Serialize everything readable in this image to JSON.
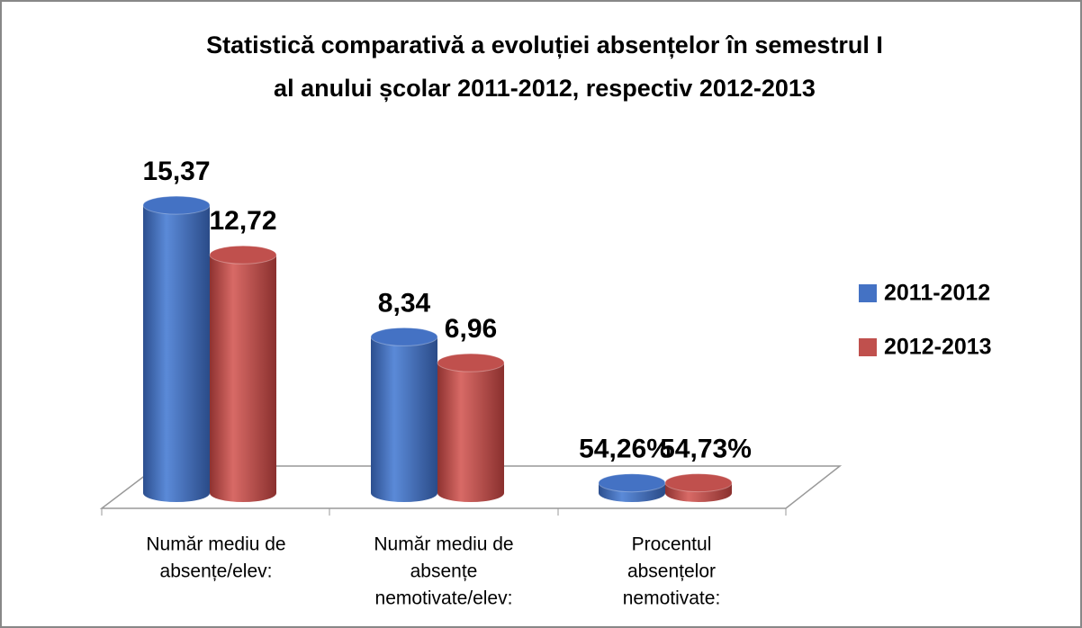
{
  "chart_data": {
    "type": "bar3d",
    "title": [
      "Statistică comparativă a evoluției absențelor în semestrul I",
      "al anului școlar 2011-2012, respectiv 2012-2013"
    ],
    "categories": [
      [
        "Număr mediu de",
        "absențe/elev:"
      ],
      [
        "Număr mediu de",
        "absențe",
        "nemotivate/elev:"
      ],
      [
        "Procentul",
        "absențelor",
        "nemotivate:"
      ]
    ],
    "series": [
      {
        "name": "2011-2012",
        "color": "#4472c4",
        "values": [
          15.37,
          8.34,
          0.5426
        ],
        "value_labels": [
          "15,37",
          "8,34",
          "54,26%"
        ]
      },
      {
        "name": "2012-2013",
        "color": "#c0504d",
        "values": [
          12.72,
          6.96,
          0.5473
        ],
        "value_labels": [
          "12,72",
          "6,96",
          "54,73%"
        ]
      }
    ],
    "ylim": [
      0,
      16
    ],
    "legend": "right"
  }
}
